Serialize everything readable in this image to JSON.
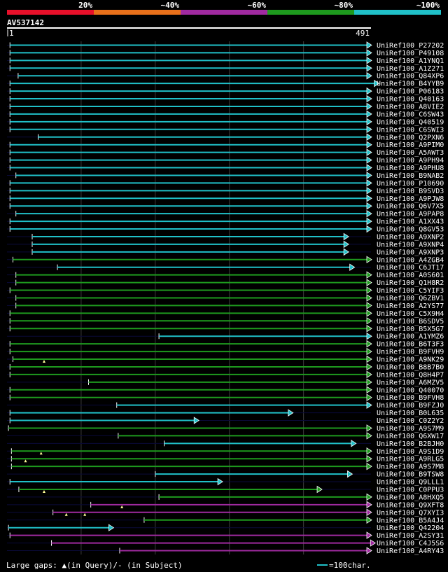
{
  "chart_data": {
    "type": "alignment-overview",
    "query_id": "AV537142",
    "query_length": 491,
    "ruler_start": "1",
    "ruler_end": "491",
    "identity_legend": [
      {
        "label": "20%",
        "color": "#e8102a"
      },
      {
        "label": "~40%",
        "color": "#e8701a"
      },
      {
        "label": "~60%",
        "color": "#a02aa0"
      },
      {
        "label": "~80%",
        "color": "#1e9a1e"
      },
      {
        "label": "~100%",
        "color": "#20c0c8"
      }
    ],
    "hits": [
      {
        "name": "UniRef100_P27202",
        "start": 4,
        "end": 491,
        "color": "#20c0c8",
        "tri": []
      },
      {
        "name": "UniRef100_P49108",
        "start": 4,
        "end": 491,
        "color": "#20c0c8",
        "tri": []
      },
      {
        "name": "UniRef100_A1YNQ1",
        "start": 4,
        "end": 491,
        "color": "#20c0c8",
        "tri": []
      },
      {
        "name": "UniRef100_A1Z271",
        "start": 4,
        "end": 491,
        "color": "#20c0c8",
        "tri": []
      },
      {
        "name": "UniRef100_Q84XP6",
        "start": 15,
        "end": 491,
        "color": "#20c0c8",
        "tri": []
      },
      {
        "name": "UniRef100_B4YYB9",
        "start": 4,
        "end": 501,
        "color": "#20c0c8",
        "tri": []
      },
      {
        "name": "UniRef100_P06183",
        "start": 4,
        "end": 491,
        "color": "#20c0c8",
        "tri": []
      },
      {
        "name": "UniRef100_Q40163",
        "start": 4,
        "end": 491,
        "color": "#20c0c8",
        "tri": []
      },
      {
        "name": "UniRef100_A8VIE2",
        "start": 4,
        "end": 491,
        "color": "#20c0c8",
        "tri": []
      },
      {
        "name": "UniRef100_C6SW43",
        "start": 4,
        "end": 491,
        "color": "#20c0c8",
        "tri": []
      },
      {
        "name": "UniRef100_Q40519",
        "start": 4,
        "end": 491,
        "color": "#20c0c8",
        "tri": []
      },
      {
        "name": "UniRef100_C6SWI3",
        "start": 4,
        "end": 491,
        "color": "#20c0c8",
        "tri": []
      },
      {
        "name": "UniRef100_Q2PXN6",
        "start": 42,
        "end": 491,
        "color": "#20c0c8",
        "tri": []
      },
      {
        "name": "UniRef100_A9PIM0",
        "start": 4,
        "end": 491,
        "color": "#20c0c8",
        "tri": []
      },
      {
        "name": "UniRef100_A5AWT3",
        "start": 4,
        "end": 491,
        "color": "#20c0c8",
        "tri": []
      },
      {
        "name": "UniRef100_A9PH94",
        "start": 4,
        "end": 491,
        "color": "#20c0c8",
        "tri": []
      },
      {
        "name": "UniRef100_A9PHU8",
        "start": 4,
        "end": 491,
        "color": "#20c0c8",
        "tri": []
      },
      {
        "name": "UniRef100_B9NAB2",
        "start": 12,
        "end": 491,
        "color": "#20c0c8",
        "tri": []
      },
      {
        "name": "UniRef100_P10690",
        "start": 4,
        "end": 491,
        "color": "#20c0c8",
        "tri": []
      },
      {
        "name": "UniRef100_B9SVD3",
        "start": 4,
        "end": 491,
        "color": "#20c0c8",
        "tri": []
      },
      {
        "name": "UniRef100_A9PJW8",
        "start": 4,
        "end": 491,
        "color": "#20c0c8",
        "tri": []
      },
      {
        "name": "UniRef100_Q6V7X5",
        "start": 4,
        "end": 491,
        "color": "#20c0c8",
        "tri": []
      },
      {
        "name": "UniRef100_A9PAP8",
        "start": 12,
        "end": 491,
        "color": "#20c0c8",
        "tri": []
      },
      {
        "name": "UniRef100_A1XX43",
        "start": 4,
        "end": 491,
        "color": "#20c0c8",
        "tri": []
      },
      {
        "name": "UniRef100_Q8GV53",
        "start": 4,
        "end": 491,
        "color": "#20c0c8",
        "tri": []
      },
      {
        "name": "UniRef100_A9XNP2",
        "start": 34,
        "end": 460,
        "color": "#20c0c8",
        "tri": []
      },
      {
        "name": "UniRef100_A9XNP4",
        "start": 34,
        "end": 460,
        "color": "#20c0c8",
        "tri": []
      },
      {
        "name": "UniRef100_A9XNP3",
        "start": 34,
        "end": 460,
        "color": "#20c0c8",
        "tri": []
      },
      {
        "name": "UniRef100_A4ZGB4",
        "start": 8,
        "end": 491,
        "color": "#1e9a1e",
        "tri": []
      },
      {
        "name": "UniRef100_C6JT17",
        "start": 68,
        "end": 468,
        "color": "#20c0c8",
        "tri": []
      },
      {
        "name": "UniRef100_A0S601",
        "start": 12,
        "end": 491,
        "color": "#1e9a1e",
        "tri": []
      },
      {
        "name": "UniRef100_Q1H8R2",
        "start": 12,
        "end": 491,
        "color": "#1e9a1e",
        "tri": []
      },
      {
        "name": "UniRef100_C5YIF3",
        "start": 4,
        "end": 491,
        "color": "#1e9a1e",
        "tri": []
      },
      {
        "name": "UniRef100_Q6ZBV1",
        "start": 12,
        "end": 491,
        "color": "#1e9a1e",
        "tri": []
      },
      {
        "name": "UniRef100_A2YS77",
        "start": 12,
        "end": 491,
        "color": "#1e9a1e",
        "tri": []
      },
      {
        "name": "UniRef100_C5X9H4",
        "start": 4,
        "end": 491,
        "color": "#1e9a1e",
        "tri": []
      },
      {
        "name": "UniRef100_B6SDV5",
        "start": 4,
        "end": 491,
        "color": "#1e9a1e",
        "tri": []
      },
      {
        "name": "UniRef100_B5X5G7",
        "start": 4,
        "end": 491,
        "color": "#1e9a1e",
        "tri": []
      },
      {
        "name": "UniRef100_A1YMZ6",
        "start": 205,
        "end": 491,
        "color": "#20c0c8",
        "tri": []
      },
      {
        "name": "UniRef100_B6T3F3",
        "start": 4,
        "end": 491,
        "color": "#1e9a1e",
        "tri": []
      },
      {
        "name": "UniRef100_B9FVH9",
        "start": 4,
        "end": 491,
        "color": "#1e9a1e",
        "tri": []
      },
      {
        "name": "UniRef100_A9NK29",
        "start": 8,
        "end": 491,
        "color": "#1e9a1e",
        "tri": [
          50
        ]
      },
      {
        "name": "UniRef100_B8B7B0",
        "start": 4,
        "end": 491,
        "color": "#1e9a1e",
        "tri": []
      },
      {
        "name": "UniRef100_Q8H4P7",
        "start": 4,
        "end": 491,
        "color": "#1e9a1e",
        "tri": []
      },
      {
        "name": "UniRef100_A6MZV5",
        "start": 110,
        "end": 491,
        "color": "#1e9a1e",
        "tri": []
      },
      {
        "name": "UniRef100_Q40070",
        "start": 4,
        "end": 491,
        "color": "#1e9a1e",
        "tri": []
      },
      {
        "name": "UniRef100_B9FVH8",
        "start": 4,
        "end": 491,
        "color": "#1e9a1e",
        "tri": []
      },
      {
        "name": "UniRef100_B9FZJ0",
        "start": 148,
        "end": 491,
        "color": "#20c0c8",
        "tri": []
      },
      {
        "name": "UniRef100_B0L635",
        "start": 4,
        "end": 385,
        "color": "#20c0c8",
        "tri": []
      },
      {
        "name": "UniRef100_C0Z2Y2",
        "start": 4,
        "end": 258,
        "color": "#20c0c8",
        "tri": []
      },
      {
        "name": "UniRef100_A9S7M9",
        "start": 2,
        "end": 491,
        "color": "#1e9a1e",
        "tri": []
      },
      {
        "name": "UniRef100_Q6XW17",
        "start": 150,
        "end": 491,
        "color": "#1e9a1e",
        "tri": []
      },
      {
        "name": "UniRef100_B2BJH0",
        "start": 212,
        "end": 470,
        "color": "#20c0c8",
        "tri": []
      },
      {
        "name": "UniRef100_A9S1D9",
        "start": 6,
        "end": 491,
        "color": "#1e9a1e",
        "tri": [
          46
        ]
      },
      {
        "name": "UniRef100_A9RLG5",
        "start": 6,
        "end": 491,
        "color": "#1e9a1e",
        "tri": [
          25
        ]
      },
      {
        "name": "UniRef100_A9S7M8",
        "start": 6,
        "end": 491,
        "color": "#1e9a1e",
        "tri": []
      },
      {
        "name": "UniRef100_B9TSW8",
        "start": 200,
        "end": 465,
        "color": "#20c0c8",
        "tri": []
      },
      {
        "name": "UniRef100_Q9LLL1",
        "start": 4,
        "end": 290,
        "color": "#20c0c8",
        "tri": []
      },
      {
        "name": "UniRef100_C0PPU3",
        "start": 16,
        "end": 424,
        "color": "#1e9a1e",
        "tri": [
          50
        ]
      },
      {
        "name": "UniRef100_A8HXQ5",
        "start": 205,
        "end": 491,
        "color": "#1e9a1e",
        "tri": []
      },
      {
        "name": "UniRef100_Q9XFT8",
        "start": 113,
        "end": 491,
        "color": "#a02aa0",
        "tri": [
          155
        ]
      },
      {
        "name": "UniRef100_Q7XYI3",
        "start": 62,
        "end": 491,
        "color": "#a02aa0",
        "tri": [
          80,
          105
        ]
      },
      {
        "name": "UniRef100_B5A4J4",
        "start": 185,
        "end": 491,
        "color": "#1e9a1e",
        "tri": []
      },
      {
        "name": "UniRef100_Q42204",
        "start": 2,
        "end": 143,
        "color": "#20c0c8",
        "tri": []
      },
      {
        "name": "UniRef100_A2SY31",
        "start": 4,
        "end": 491,
        "color": "#a02aa0",
        "tri": []
      },
      {
        "name": "UniRef100_C4J5S6",
        "start": 60,
        "end": 496,
        "color": "#a02aa0",
        "tri": []
      },
      {
        "name": "UniRef100_A4RY43",
        "start": 152,
        "end": 491,
        "color": "#a02aa0",
        "tri": []
      }
    ],
    "footer_left": "Large gaps: ▲(in Query)/‐ (in Subject)",
    "footer_right": "=100char.",
    "scale_bar_chars": 100,
    "scale_bar_color": "#20c0c8"
  }
}
